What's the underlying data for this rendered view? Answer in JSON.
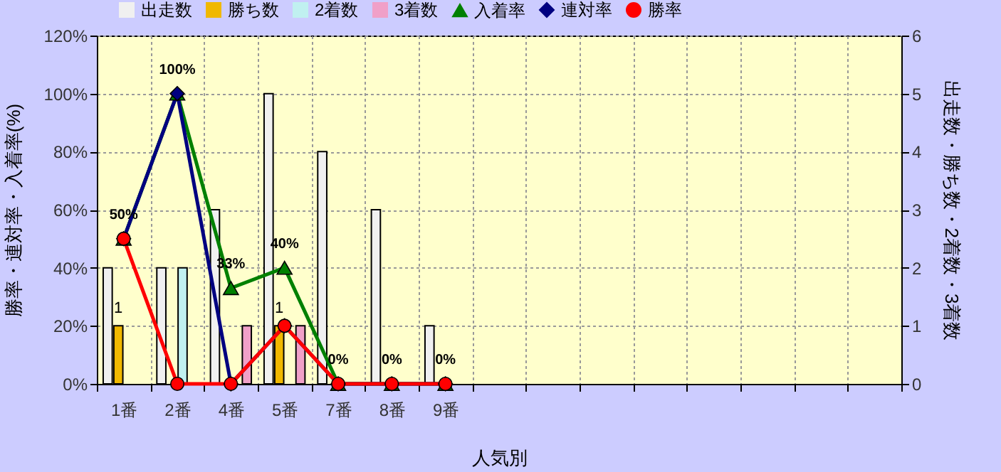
{
  "chart_data": {
    "type": "bar",
    "xlabel": "人気別",
    "ylabel": "勝率・連対率・入着率(%)",
    "y2label": "出走数・勝ち数・2着数・3着数",
    "categories": [
      "1番",
      "2番",
      "4番",
      "5番",
      "7番",
      "8番",
      "9番",
      null,
      null,
      null,
      null,
      null,
      null,
      null,
      null
    ],
    "series": [
      {
        "name": "出走数",
        "axis": "y2",
        "color": "#f0f0f0",
        "values": [
          2,
          2,
          3,
          5,
          4,
          3,
          1,
          null,
          null,
          null,
          null,
          null,
          null,
          null,
          null
        ]
      },
      {
        "name": "勝ち数",
        "axis": "y2",
        "color": "#f0b800",
        "values": [
          1,
          0,
          0,
          1,
          0,
          0,
          0,
          null,
          null,
          null,
          null,
          null,
          null,
          null,
          null
        ],
        "value_labels": [
          "1",
          null,
          null,
          "1",
          null,
          null,
          null,
          null,
          null,
          null,
          null,
          null,
          null,
          null,
          null
        ]
      },
      {
        "name": "2着数",
        "axis": "y2",
        "color": "#c0f0f0",
        "values": [
          0,
          2,
          0,
          0,
          0,
          0,
          0,
          null,
          null,
          null,
          null,
          null,
          null,
          null,
          null
        ]
      },
      {
        "name": "3着数",
        "axis": "y2",
        "color": "#f0a0c8",
        "values": [
          0,
          0,
          1,
          1,
          0,
          0,
          0,
          null,
          null,
          null,
          null,
          null,
          null,
          null,
          null
        ]
      },
      {
        "name": "入着率",
        "type": "line",
        "marker": "triangle",
        "color": "#008000",
        "values": [
          50,
          100,
          33,
          40,
          0,
          0,
          0,
          null,
          null,
          null,
          null,
          null,
          null,
          null,
          null
        ],
        "value_labels": [
          "50%",
          "100%",
          "33%",
          "40%",
          "0%",
          "0%",
          "0%",
          null,
          null,
          null,
          null,
          null,
          null,
          null,
          null
        ]
      },
      {
        "name": "連対率",
        "type": "line",
        "marker": "diamond",
        "color": "#000080",
        "values": [
          50,
          100,
          0,
          20,
          0,
          0,
          0,
          null,
          null,
          null,
          null,
          null,
          null,
          null,
          null
        ]
      },
      {
        "name": "勝率",
        "type": "line",
        "marker": "circle",
        "color": "#ff0000",
        "values": [
          50,
          0,
          0,
          20,
          0,
          0,
          0,
          null,
          null,
          null,
          null,
          null,
          null,
          null,
          null
        ]
      }
    ],
    "ylim": [
      0,
      120
    ],
    "yticks": [
      {
        "value": 0,
        "label": "0%"
      },
      {
        "value": 20,
        "label": "20%"
      },
      {
        "value": 40,
        "label": "40%"
      },
      {
        "value": 60,
        "label": "60%"
      },
      {
        "value": 80,
        "label": "80%"
      },
      {
        "value": 100,
        "label": "100%"
      },
      {
        "value": 120,
        "label": "120%"
      }
    ],
    "y2lim": [
      0,
      6
    ],
    "y2ticks": [
      0,
      1,
      2,
      3,
      4,
      5,
      6
    ],
    "grid": true,
    "legend": "top"
  }
}
